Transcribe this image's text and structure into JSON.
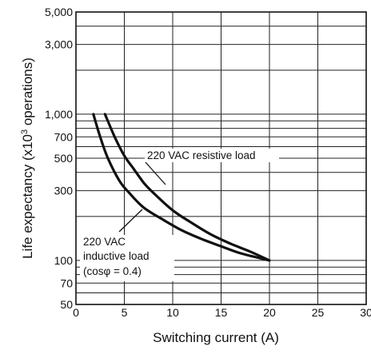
{
  "chart_data": {
    "type": "line",
    "xlabel": "Switching current (A)",
    "ylabel": "Life expectancy (x10 3 operations)",
    "ylabel_parts": {
      "before": "Life expectancy (x10",
      "exp": "3",
      "after": " operations)"
    },
    "xlim": [
      0,
      30
    ],
    "ylim": [
      50,
      5000
    ],
    "yscale": "log",
    "grid": true,
    "x_ticks": [
      "0",
      "5",
      "10",
      "15",
      "20",
      "25",
      "30"
    ],
    "x_tick_values": [
      0,
      5,
      10,
      15,
      20,
      25,
      30
    ],
    "y_tick_labels": [
      {
        "value": 50,
        "label": "50"
      },
      {
        "value": 70,
        "label": "70"
      },
      {
        "value": 100,
        "label": "100"
      },
      {
        "value": 300,
        "label": "300"
      },
      {
        "value": 500,
        "label": "500"
      },
      {
        "value": 700,
        "label": "700"
      },
      {
        "value": 1000,
        "label": "1,000"
      },
      {
        "value": 3000,
        "label": "3,000"
      },
      {
        "value": 5000,
        "label": "5,000"
      }
    ],
    "y_gridlines": [
      50,
      60,
      70,
      80,
      90,
      100,
      200,
      300,
      400,
      500,
      600,
      700,
      800,
      900,
      1000,
      2000,
      3000,
      4000,
      5000
    ],
    "series": [
      {
        "name": "220 VAC resistive load",
        "points": [
          [
            3,
            1000
          ],
          [
            4,
            700
          ],
          [
            5,
            520
          ],
          [
            6,
            420
          ],
          [
            7,
            340
          ],
          [
            8,
            290
          ],
          [
            10,
            220
          ],
          [
            12,
            180
          ],
          [
            14,
            150
          ],
          [
            16,
            130
          ],
          [
            18,
            115
          ],
          [
            20,
            100
          ]
        ]
      },
      {
        "name": "220 VAC inductive load (cosφ = 0.4)",
        "points": [
          [
            1.8,
            1000
          ],
          [
            2.5,
            700
          ],
          [
            3.3,
            500
          ],
          [
            4.5,
            350
          ],
          [
            5.5,
            290
          ],
          [
            7,
            230
          ],
          [
            9,
            190
          ],
          [
            11,
            160
          ],
          [
            13,
            140
          ],
          [
            15,
            125
          ],
          [
            17,
            112
          ],
          [
            20,
            100
          ]
        ]
      }
    ],
    "annotations": [
      {
        "lines": [
          "220 VAC resistive load"
        ]
      },
      {
        "lines": [
          "220 VAC",
          "inductive load",
          "(cosφ = 0.4)"
        ]
      }
    ]
  }
}
